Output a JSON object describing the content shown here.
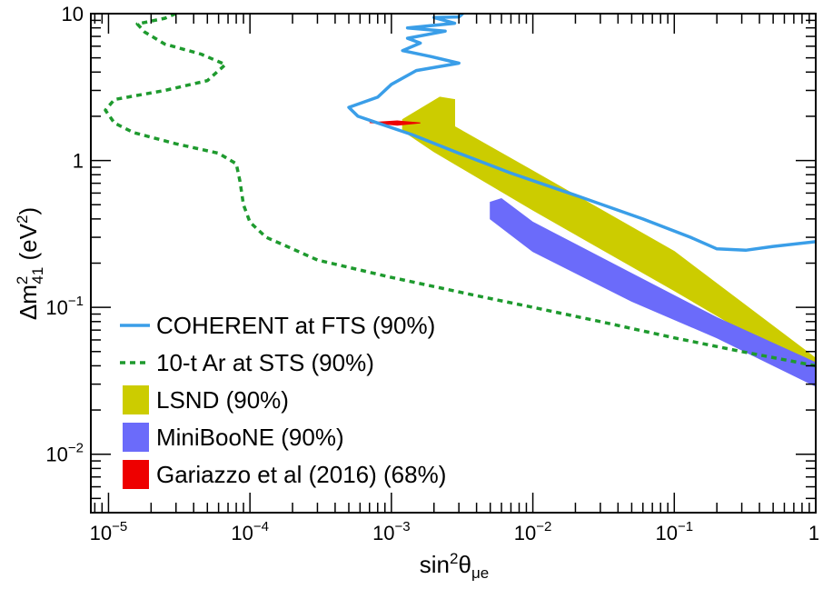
{
  "chart_data": {
    "type": "line",
    "xlabel": {
      "main": "sin",
      "sup": "2",
      "theta": "θ",
      "sub": "μe"
    },
    "ylabel": {
      "delta": "Δm",
      "sup": "2",
      "sub": "41",
      "unit_open": " (eV",
      "unit_sup": "2",
      "unit_close": ")"
    },
    "x_scale": "log",
    "y_scale": "log",
    "xlim": [
      7.5e-06,
      1
    ],
    "ylim": [
      0.004,
      10
    ],
    "grid": false,
    "legend_position": "bottom-left",
    "x_ticks": [
      {
        "value": 1e-05,
        "base": "10",
        "exp": "−5"
      },
      {
        "value": 0.0001,
        "base": "10",
        "exp": "−4"
      },
      {
        "value": 0.001,
        "base": "10",
        "exp": "−3"
      },
      {
        "value": 0.01,
        "base": "10",
        "exp": "−2"
      },
      {
        "value": 0.1,
        "base": "10",
        "exp": "−1"
      },
      {
        "value": 1,
        "base": "1",
        "exp": ""
      }
    ],
    "y_ticks": [
      {
        "value": 0.01,
        "base": "10",
        "exp": "−2"
      },
      {
        "value": 0.1,
        "base": "10",
        "exp": "−1"
      },
      {
        "value": 1,
        "base": "1",
        "exp": ""
      },
      {
        "value": 10,
        "base": "10",
        "exp": ""
      }
    ],
    "series": [
      {
        "name": "COHERENT at FTS (90%)",
        "kind": "line",
        "color": "#3a9ee8",
        "points": [
          [
            0.0032,
            10
          ],
          [
            0.003,
            9.5
          ],
          [
            0.002,
            9.4
          ],
          [
            0.0028,
            8.6
          ],
          [
            0.0013,
            8.0
          ],
          [
            0.0024,
            7.6
          ],
          [
            0.0013,
            6.8
          ],
          [
            0.0016,
            6.3
          ],
          [
            0.0012,
            5.6
          ],
          [
            0.0019,
            5.1
          ],
          [
            0.003,
            4.6
          ],
          [
            0.0015,
            4.1
          ],
          [
            0.001,
            3.3
          ],
          [
            0.0008,
            2.7
          ],
          [
            0.0005,
            2.3
          ],
          [
            0.00058,
            2.0
          ],
          [
            0.0008,
            1.8
          ],
          [
            0.0014,
            1.5
          ],
          [
            0.003,
            1.12
          ],
          [
            0.007,
            0.82
          ],
          [
            0.02,
            0.58
          ],
          [
            0.06,
            0.4
          ],
          [
            0.13,
            0.3
          ],
          [
            0.2,
            0.25
          ],
          [
            0.32,
            0.245
          ],
          [
            0.5,
            0.26
          ],
          [
            1.0,
            0.28
          ]
        ]
      },
      {
        "name": "10-t Ar at STS (90%)",
        "kind": "dashed-line",
        "color": "#1e9a2e",
        "points": [
          [
            3e-05,
            10
          ],
          [
            2.5e-05,
            9.3
          ],
          [
            1.6e-05,
            8.5
          ],
          [
            1.8e-05,
            7.5
          ],
          [
            2.5e-05,
            6.2
          ],
          [
            4.5e-05,
            5.3
          ],
          [
            6.7e-05,
            4.5
          ],
          [
            5e-05,
            3.5
          ],
          [
            2.5e-05,
            3.0
          ],
          [
            1.1e-05,
            2.6
          ],
          [
            9.5e-06,
            2.2
          ],
          [
            1.1e-05,
            1.8
          ],
          [
            1.5e-05,
            1.55
          ],
          [
            3e-05,
            1.3
          ],
          [
            6e-05,
            1.12
          ],
          [
            8e-05,
            0.95
          ],
          [
            8.5e-05,
            0.72
          ],
          [
            9e-05,
            0.5
          ],
          [
            0.0001,
            0.38
          ],
          [
            0.00013,
            0.3
          ],
          [
            0.0002,
            0.25
          ],
          [
            0.0003,
            0.21
          ],
          [
            0.001,
            0.16
          ],
          [
            0.004,
            0.12
          ],
          [
            0.01,
            0.1
          ],
          [
            0.03,
            0.08
          ],
          [
            0.1,
            0.062
          ],
          [
            0.3,
            0.05
          ],
          [
            1.0,
            0.04
          ]
        ]
      },
      {
        "name": "LSND (90%)",
        "kind": "region",
        "color": "#cccc00",
        "points": [
          [
            0.0012,
            1.9
          ],
          [
            0.0022,
            2.7
          ],
          [
            0.0028,
            2.6
          ],
          [
            0.0028,
            1.7
          ],
          [
            0.01,
            0.85
          ],
          [
            0.1,
            0.24
          ],
          [
            1.0,
            0.045
          ],
          [
            1.0,
            0.036
          ],
          [
            0.3,
            0.07
          ],
          [
            0.1,
            0.13
          ],
          [
            0.01,
            0.46
          ],
          [
            0.002,
            1.15
          ],
          [
            0.0012,
            1.6
          ]
        ]
      },
      {
        "name": "MiniBooNE (90%)",
        "kind": "region",
        "color": "#6b6bfa",
        "points": [
          [
            0.005,
            0.52
          ],
          [
            0.006,
            0.55
          ],
          [
            0.01,
            0.38
          ],
          [
            0.05,
            0.17
          ],
          [
            0.2,
            0.085
          ],
          [
            1.0,
            0.042
          ],
          [
            1.0,
            0.029
          ],
          [
            0.2,
            0.062
          ],
          [
            0.05,
            0.11
          ],
          [
            0.01,
            0.24
          ],
          [
            0.005,
            0.4
          ]
        ]
      },
      {
        "name": "Gariazzo et al (2016) (68%)",
        "kind": "region",
        "color": "#ee0000",
        "points": [
          [
            0.0007,
            1.81
          ],
          [
            0.0011,
            1.86
          ],
          [
            0.0016,
            1.8
          ],
          [
            0.0011,
            1.74
          ]
        ]
      }
    ],
    "legend_order": [
      0,
      1,
      2,
      3,
      4
    ]
  }
}
